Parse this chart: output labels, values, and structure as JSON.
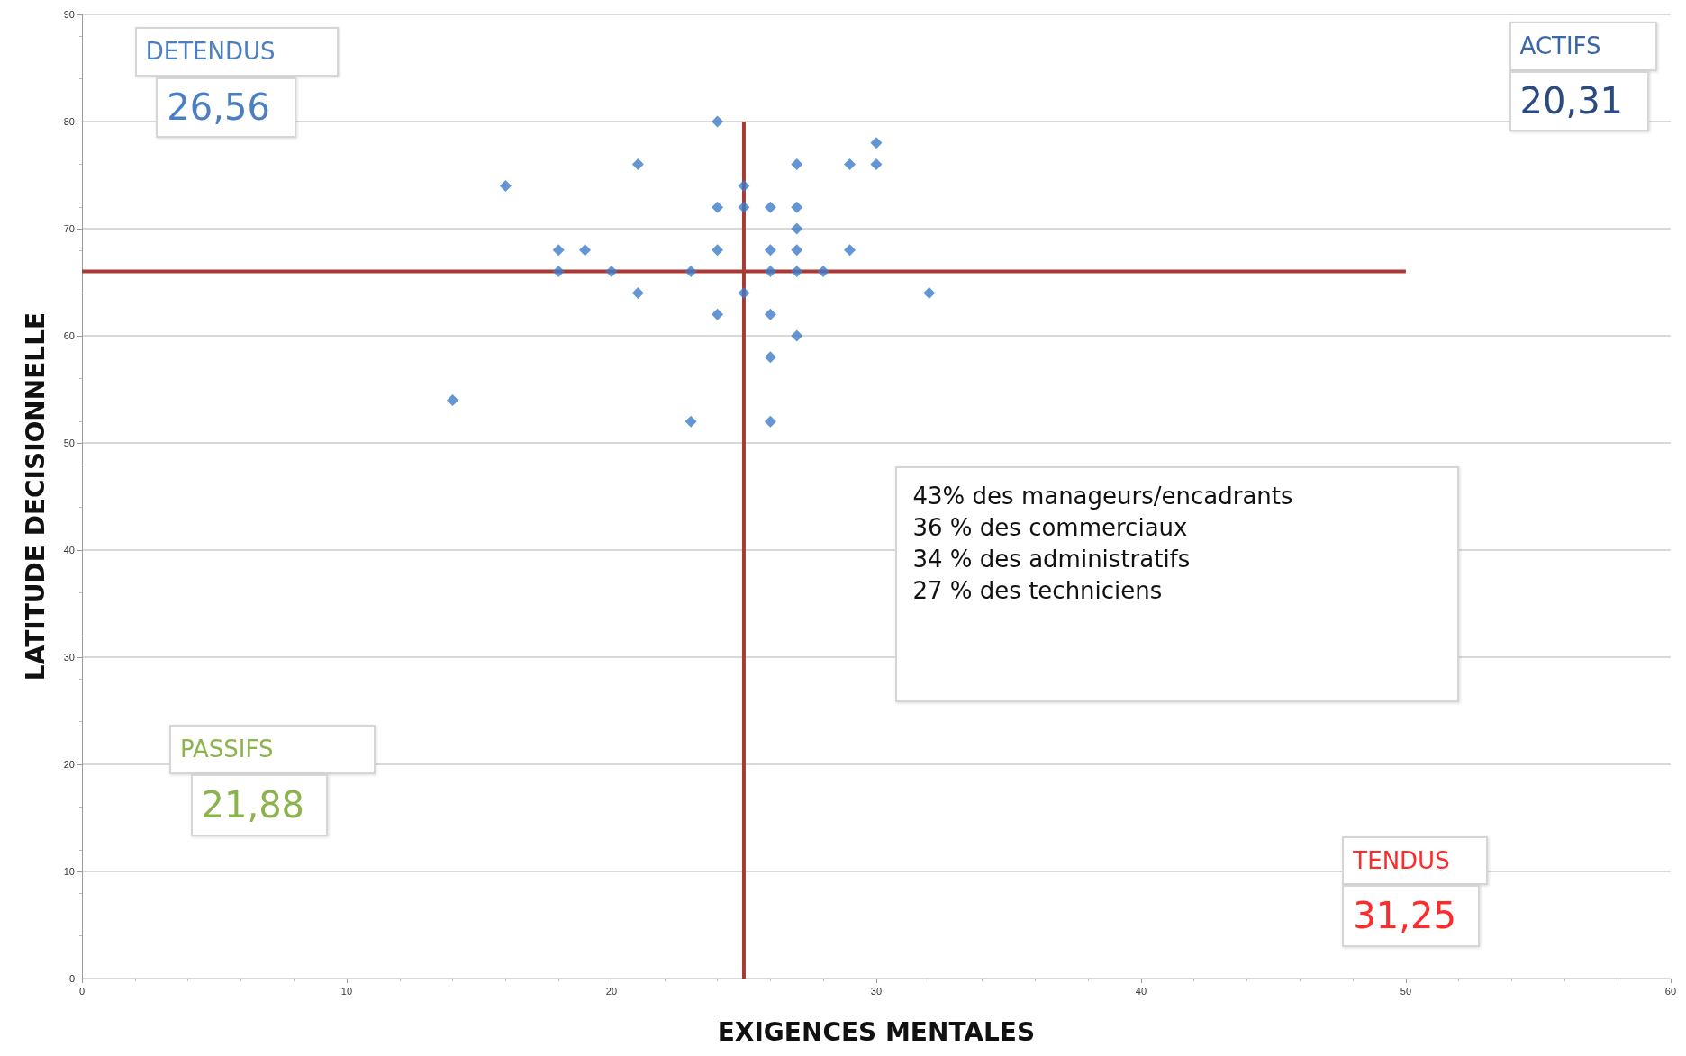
{
  "chart_data": {
    "type": "scatter",
    "xlabel": "EXIGENCES MENTALES",
    "ylabel": "LATITUDE DECISIONNELLE",
    "xlim": [
      0,
      60
    ],
    "xticks": [
      0,
      10,
      20,
      30,
      40,
      50,
      60
    ],
    "ylim": [
      0,
      90
    ],
    "yticks": [
      0,
      10,
      20,
      30,
      40,
      50,
      60,
      70,
      80,
      90
    ],
    "grid": "y",
    "series": [
      {
        "color": "#3d7cc9",
        "marker": "diamond",
        "x": [
          24,
          30,
          21,
          27,
          29,
          30,
          16,
          25,
          24,
          25,
          26,
          27,
          27,
          18,
          19,
          24,
          26,
          27,
          29,
          18,
          20,
          23,
          26,
          27,
          28,
          21,
          25,
          32,
          24,
          26,
          27,
          26,
          14,
          23,
          26
        ],
        "values": [
          80,
          78,
          76,
          76,
          76,
          76,
          74,
          74,
          72,
          72,
          72,
          72,
          70,
          68,
          68,
          68,
          68,
          68,
          68,
          66,
          66,
          66,
          66,
          66,
          66,
          64,
          64,
          64,
          62,
          62,
          60,
          58,
          54,
          52,
          52
        ]
      },
      {
        "type": "line",
        "color": "#a83a35",
        "x": [
          0,
          50
        ],
        "values": [
          66,
          66
        ]
      },
      {
        "type": "line",
        "color": "#a83a35",
        "x": [
          25,
          25
        ],
        "values": [
          0,
          80
        ]
      }
    ],
    "annotations": [
      "DETENDUS",
      "26,56",
      "ACTIFS",
      "20,31",
      "PASSIFS",
      "21,88",
      "TENDUS",
      "31,25",
      "43% des manageurs/encadrants\n36 % des commerciaux\n34 % des administratifs\n27 % des techniciens"
    ]
  }
}
